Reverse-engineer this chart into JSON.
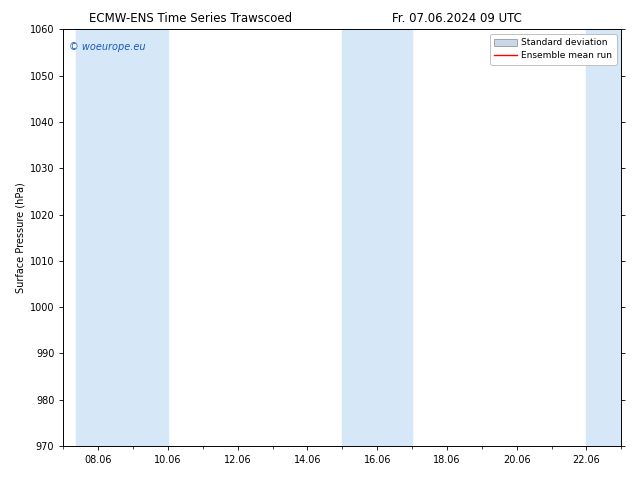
{
  "title_left": "ECMW-ENS Time Series Trawscoed",
  "title_right": "Fr. 07.06.2024 09 UTC",
  "ylabel": "Surface Pressure (hPa)",
  "ylim": [
    970,
    1060
  ],
  "yticks": [
    970,
    980,
    990,
    1000,
    1010,
    1020,
    1030,
    1040,
    1050,
    1060
  ],
  "xtick_labels": [
    "08.06",
    "10.06",
    "12.06",
    "14.06",
    "16.06",
    "18.06",
    "20.06",
    "22.06"
  ],
  "xtick_positions_day": [
    8,
    10,
    12,
    14,
    16,
    18,
    20,
    22
  ],
  "x_min": 7.375,
  "x_max": 23.0,
  "shaded_bands": [
    {
      "x_start_day": 7.375,
      "x_end_day": 10.0
    },
    {
      "x_start_day": 15.0,
      "x_end_day": 17.0
    },
    {
      "x_start_day": 22.0,
      "x_end_day": 23.0
    }
  ],
  "shade_color": "#d6e8f7",
  "watermark_text": "© woeurope.eu",
  "watermark_color": "#1a56c4",
  "legend_std_label": "Standard deviation",
  "legend_mean_label": "Ensemble mean run",
  "legend_std_color": "#c8d8e8",
  "legend_std_edge": "#888888",
  "legend_mean_color": "#ff0000",
  "bg_color": "#ffffff",
  "title_fontsize": 8.5,
  "label_fontsize": 7,
  "tick_fontsize": 7,
  "watermark_fontsize": 7,
  "legend_fontsize": 6.5
}
